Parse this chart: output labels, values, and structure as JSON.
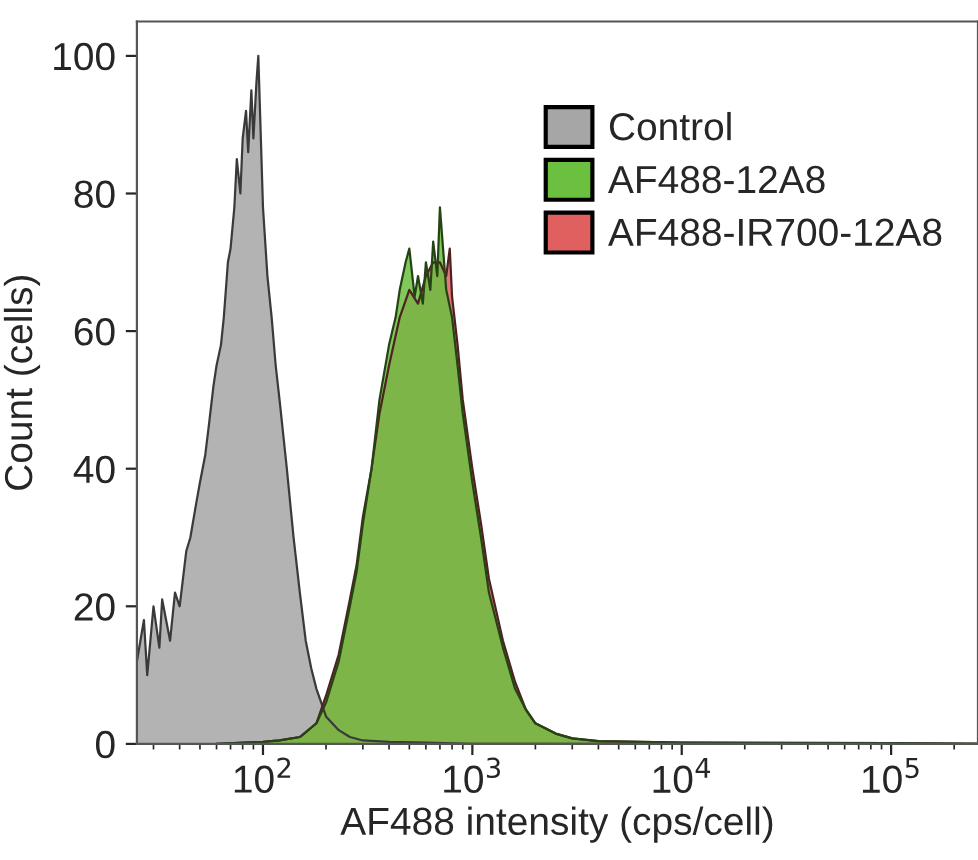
{
  "chart_data": {
    "type": "area",
    "xlabel": "AF488 intensity (cps/cell)",
    "ylabel": "Count (cells)",
    "log": "x",
    "xlim": [
      25,
      260000
    ],
    "ylim": [
      0,
      105
    ],
    "xticks": [
      {
        "value": 100,
        "label": "10$^{2}$"
      },
      {
        "value": 1000,
        "label": "10$^{3}$"
      },
      {
        "value": 10000,
        "label": "10$^{4}$"
      },
      {
        "value": 100000,
        "label": "10$^{5}$"
      }
    ],
    "yticks": [
      0,
      20,
      40,
      60,
      80,
      100
    ],
    "grid": false,
    "legend": "top right",
    "series": [
      {
        "name": "Control",
        "color": "#a6a6a6",
        "x": [
          25,
          27,
          28,
          30,
          32,
          33,
          36,
          38,
          40,
          43,
          45,
          48,
          50,
          53,
          55,
          58,
          60,
          63,
          65,
          68,
          70,
          73,
          75,
          78,
          80,
          83,
          85,
          88,
          90,
          93,
          95,
          100,
          105,
          110,
          115,
          120,
          130,
          140,
          150,
          160,
          170,
          180,
          200,
          230,
          260,
          300,
          400,
          600,
          1000,
          3000,
          260000
        ],
        "values": [
          12,
          18,
          10,
          20,
          14,
          21,
          15,
          22,
          20,
          28,
          30,
          35,
          38,
          42,
          46,
          52,
          55,
          58,
          62,
          70,
          72,
          78,
          85,
          80,
          88,
          92,
          86,
          95,
          88,
          96,
          100,
          78,
          68,
          62,
          55,
          50,
          40,
          30,
          22,
          15,
          11,
          8,
          4,
          2,
          1,
          0.5,
          0.3,
          0.2,
          0,
          0,
          0
        ]
      },
      {
        "name": "AF488-12A8",
        "color": "#6cc040",
        "x": [
          60,
          100,
          120,
          150,
          180,
          200,
          230,
          260,
          280,
          300,
          330,
          360,
          400,
          430,
          450,
          480,
          500,
          530,
          550,
          580,
          600,
          630,
          650,
          680,
          700,
          750,
          800,
          850,
          900,
          1000,
          1100,
          1200,
          1400,
          1600,
          1800,
          2000,
          2500,
          3000,
          4000,
          10000,
          100000,
          260000
        ],
        "values": [
          0,
          0.3,
          0.5,
          1,
          3,
          6,
          12,
          20,
          25,
          32,
          40,
          50,
          58,
          62,
          66,
          70,
          72,
          65,
          68,
          64,
          70,
          66,
          73,
          68,
          78,
          66,
          62,
          55,
          48,
          38,
          30,
          22,
          14,
          8,
          5,
          3,
          1.5,
          0.8,
          0.4,
          0.2,
          0.1,
          0
        ]
      },
      {
        "name": "AF488-IR700-12A8",
        "color": "#e06060",
        "x": [
          60,
          100,
          120,
          150,
          180,
          200,
          230,
          260,
          280,
          300,
          330,
          360,
          400,
          450,
          500,
          550,
          600,
          650,
          700,
          750,
          780,
          800,
          850,
          900,
          1000,
          1100,
          1200,
          1400,
          1600,
          1800,
          2000,
          2500,
          3000,
          4000,
          10000,
          100000,
          260000
        ],
        "values": [
          0,
          0.3,
          0.5,
          1,
          3,
          7,
          13,
          21,
          26,
          33,
          40,
          48,
          55,
          62,
          66,
          64,
          68,
          70,
          70,
          68,
          72,
          65,
          58,
          50,
          40,
          32,
          24,
          15,
          9,
          5,
          3,
          1.5,
          0.8,
          0.4,
          0.2,
          0.1,
          0
        ]
      }
    ]
  }
}
